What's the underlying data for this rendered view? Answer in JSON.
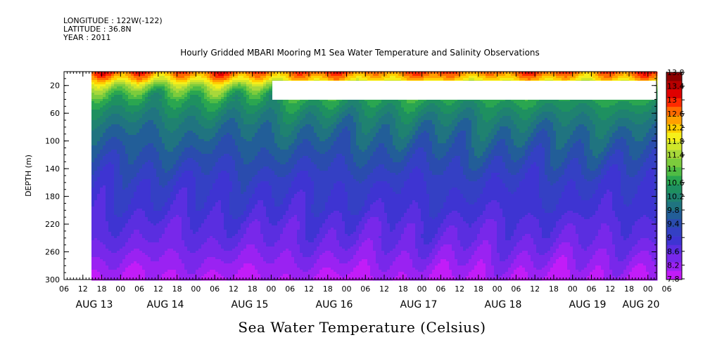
{
  "header": {
    "longitude": "LONGITUDE : 122W(-122)",
    "latitude": "LATITUDE : 36.8N",
    "year": "YEAR : 2011"
  },
  "title": "Hourly Gridded MBARI Mooring M1 Sea Water Temperature and Salinity Observations",
  "x_title": "Sea Water Temperature (Celsius)",
  "chart_data": {
    "type": "heatmap",
    "ylabel": "DEPTH (m)",
    "y_ticks": [
      20,
      60,
      100,
      140,
      180,
      220,
      260,
      300
    ],
    "ylim": [
      300,
      0
    ],
    "x_hour_ticks": [
      "06",
      "12",
      "18",
      "00",
      "06",
      "12",
      "18",
      "00",
      "06",
      "12",
      "18",
      "00",
      "06",
      "12",
      "18",
      "00",
      "06",
      "12",
      "18",
      "00",
      "06",
      "12",
      "18",
      "00",
      "06",
      "12",
      "18",
      "00",
      "06",
      "12",
      "18",
      "00",
      "06"
    ],
    "x_date_labels": [
      "AUG 13",
      "AUG 14",
      "AUG 15",
      "AUG 16",
      "AUG 17",
      "AUG 18",
      "AUG 19",
      "AUG 20"
    ],
    "colorbar": {
      "labels": [
        "13.8",
        "13.4",
        "13",
        "12.6",
        "12.2",
        "11.8",
        "11.4",
        "11",
        "10.6",
        "10.2",
        "9.8",
        "9.4",
        "9",
        "8.6",
        "8.2",
        "7.8"
      ],
      "colors": [
        "#8c0000",
        "#b80000",
        "#e00000",
        "#ff2a00",
        "#ff6a00",
        "#ff9f00",
        "#ffcf00",
        "#f5ef1a",
        "#d0e62a",
        "#a8d83a",
        "#7ccc3c",
        "#4fbc44",
        "#2aa650",
        "#1e9060",
        "#1f8270",
        "#207480",
        "#225e98",
        "#2a4cae",
        "#3440c4",
        "#3e34d2",
        "#5a2ee0",
        "#7828ea",
        "#9a22f2",
        "#c21cf8"
      ],
      "vmin": 7.8,
      "vmax": 13.8
    },
    "missing_data": [
      {
        "region": "before AUG 13 06",
        "depth_range": [
          0,
          300
        ]
      },
      {
        "region": "AUG 15 17 to AUG 20 06",
        "depth_range": [
          12,
          40
        ]
      }
    ],
    "profile": {
      "depth": [
        0,
        10,
        20,
        30,
        40,
        50,
        60,
        80,
        100,
        120,
        140,
        160,
        180,
        200,
        220,
        240,
        260,
        280,
        300
      ],
      "temperature": [
        12.8,
        12.2,
        11.4,
        10.9,
        10.6,
        10.4,
        10.2,
        9.9,
        9.7,
        9.5,
        9.3,
        9.1,
        9.0,
        8.9,
        8.7,
        8.6,
        8.4,
        8.2,
        8.0
      ]
    }
  }
}
